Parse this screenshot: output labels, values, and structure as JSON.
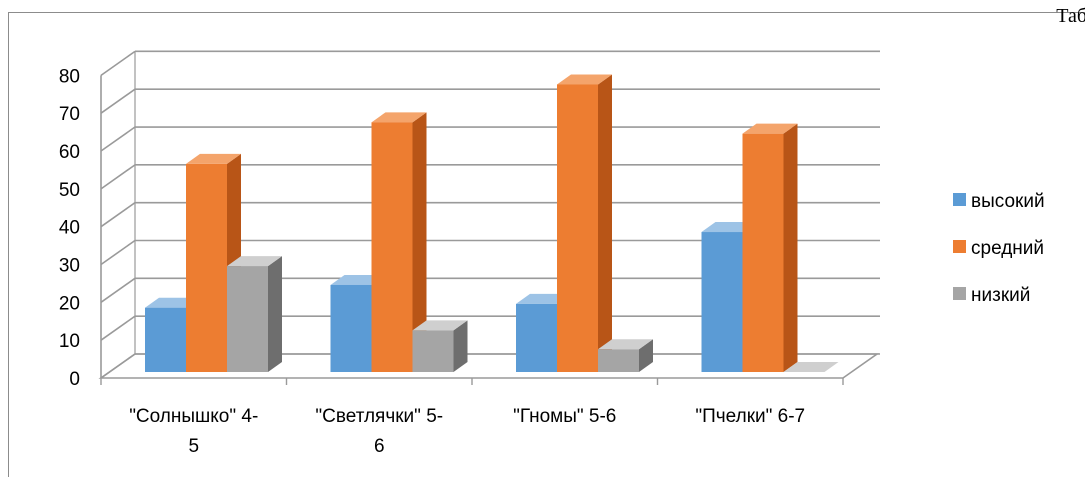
{
  "corner_text": "Таб",
  "colors": {
    "высокий": [
      "#5b9bd5",
      "#2e75b6",
      "#9dc3e6"
    ],
    "средний": [
      "#ed7d31",
      "#b85517",
      "#f4a46b"
    ],
    "низкий": [
      "#a5a5a5",
      "#6e6e6e",
      "#cfcfcf"
    ]
  },
  "chart_data": {
    "type": "bar",
    "title": "",
    "xlabel": "",
    "ylabel": "",
    "ylim": [
      0,
      80
    ],
    "yticks": [
      "0",
      "10",
      "20",
      "30",
      "40",
      "50",
      "60",
      "70",
      "80"
    ],
    "grid": true,
    "legend_position": "right",
    "categories": [
      [
        "\"Солнышко\" 4-",
        "5"
      ],
      [
        "\"Светлячки\" 5-",
        "6"
      ],
      [
        "\"Гномы\" 5-6"
      ],
      [
        "\"Пчелки\" 6-7"
      ]
    ],
    "series": [
      {
        "name": "высокий",
        "values": [
          17,
          23,
          18,
          37
        ]
      },
      {
        "name": "средний",
        "values": [
          55,
          66,
          76,
          63
        ]
      },
      {
        "name": "низкий",
        "values": [
          28,
          11,
          6,
          0
        ]
      }
    ]
  }
}
